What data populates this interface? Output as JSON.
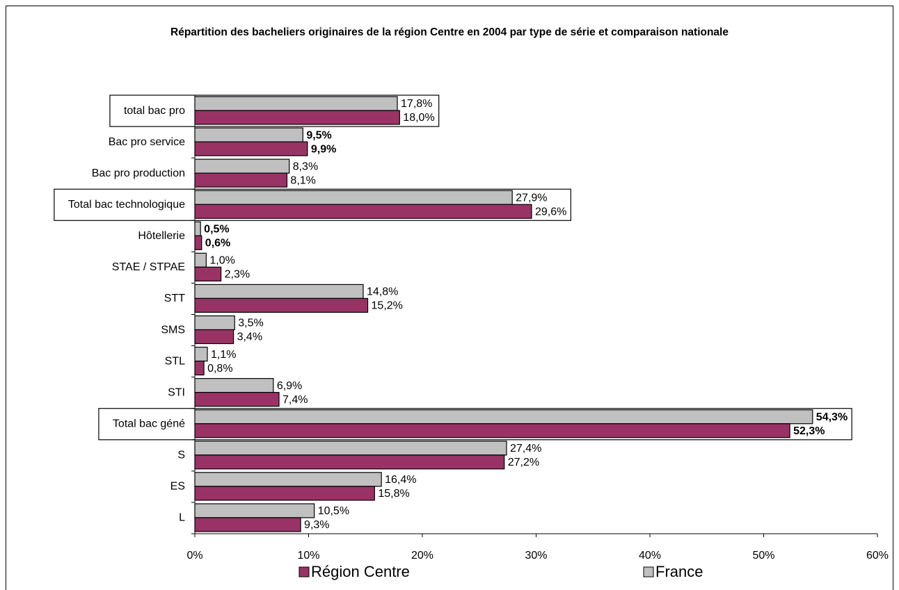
{
  "chart_data": {
    "type": "hbar",
    "title": "Répartition des bacheliers originaires de la région Centre en 2004 par type de série et comparaison nationale",
    "categories": [
      "total bac pro",
      "Bac pro service",
      "Bac pro production",
      "Total bac technologique",
      "Hôtellerie",
      "STAE / STPAE",
      "STT",
      "SMS",
      "STL",
      "STI",
      "Total bac géné",
      "S",
      "ES",
      "L"
    ],
    "series": [
      {
        "name": "Région Centre",
        "color": "#993366",
        "values": [
          18.0,
          9.9,
          8.1,
          29.6,
          0.6,
          2.3,
          15.2,
          3.4,
          0.8,
          7.4,
          52.3,
          27.2,
          15.8,
          9.3
        ],
        "value_labels": [
          "18,0%",
          "9,9%",
          "8,1%",
          "29,6%",
          "0,6%",
          "2,3%",
          "15,2%",
          "3,4%",
          "0,8%",
          "7,4%",
          "52,3%",
          "27,2%",
          "15,8%",
          "9,3%"
        ]
      },
      {
        "name": "France",
        "color": "#c0c0c0",
        "values": [
          17.8,
          9.5,
          8.3,
          27.9,
          0.5,
          1.0,
          14.8,
          3.5,
          1.1,
          6.9,
          54.3,
          27.4,
          16.4,
          10.5
        ],
        "value_labels": [
          "17,8%",
          "9,5%",
          "8,3%",
          "27,9%",
          "0,5%",
          "1,0%",
          "14,8%",
          "3,5%",
          "1,1%",
          "6,9%",
          "54,3%",
          "27,4%",
          "16,4%",
          "10,5%"
        ]
      }
    ],
    "xlim": [
      0,
      60
    ],
    "xticks": [
      {
        "value": 0,
        "label": "0%"
      },
      {
        "value": 10,
        "label": "10%"
      },
      {
        "value": 20,
        "label": "20%"
      },
      {
        "value": 30,
        "label": "30%"
      },
      {
        "value": 40,
        "label": "40%"
      },
      {
        "value": 50,
        "label": "50%"
      },
      {
        "value": 60,
        "label": "60%"
      }
    ],
    "bold_label_indices": [
      1,
      4,
      10
    ],
    "boxed_category_indices": [
      0,
      3,
      10
    ],
    "legend": "bottom"
  }
}
